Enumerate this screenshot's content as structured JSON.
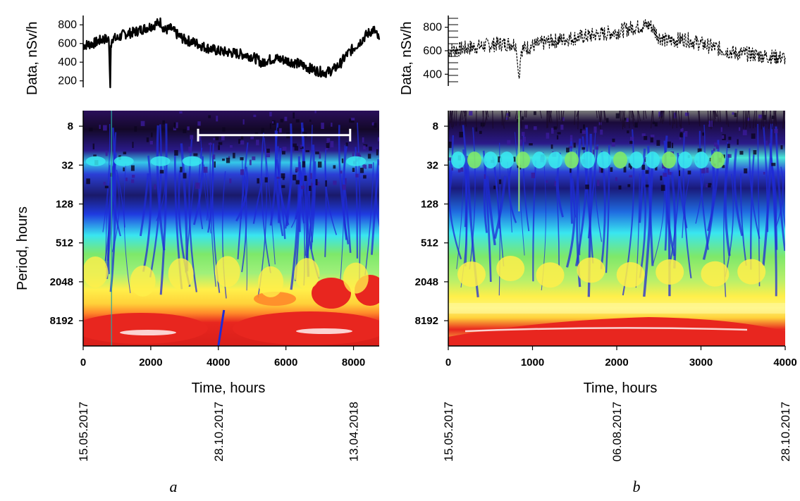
{
  "chart_data": [
    {
      "panel": "a",
      "type": "line",
      "ylabel": "Data, nSv/h",
      "y_ticks": [
        "800",
        "600",
        "400",
        "200"
      ],
      "y_tick_values": [
        800,
        600,
        400,
        200
      ],
      "ylim": [
        130,
        900
      ],
      "xlim": [
        0,
        8760
      ],
      "x": [
        0,
        300,
        600,
        760,
        800,
        820,
        840,
        880,
        1000,
        1200,
        1500,
        1800,
        2100,
        2300,
        2400,
        2600,
        2800,
        3000,
        3300,
        3600,
        4000,
        4400,
        4800,
        5000,
        5200,
        5300,
        5400,
        5700,
        6000,
        6400,
        6800,
        7000,
        7200,
        7400,
        7600,
        7800,
        8000,
        8200,
        8400,
        8600,
        8760
      ],
      "y": [
        580,
        600,
        650,
        640,
        130,
        560,
        640,
        660,
        650,
        700,
        720,
        760,
        800,
        830,
        740,
        760,
        690,
        640,
        610,
        560,
        520,
        500,
        480,
        460,
        420,
        380,
        420,
        440,
        420,
        380,
        320,
        300,
        290,
        320,
        380,
        480,
        550,
        620,
        700,
        750,
        640
      ]
    },
    {
      "panel": "b",
      "type": "line",
      "ylabel": "Data, nSv/h",
      "y_ticks": [
        "800",
        "600",
        "400"
      ],
      "y_tick_values": [
        800,
        600,
        400
      ],
      "ylim": [
        300,
        900
      ],
      "xlim": [
        0,
        4000
      ],
      "x": [
        0,
        200,
        400,
        600,
        800,
        840,
        860,
        900,
        1000,
        1200,
        1400,
        1600,
        1800,
        2000,
        2200,
        2400,
        2500,
        2600,
        2800,
        3000,
        3200,
        3400,
        3600,
        3800,
        4000
      ],
      "y": [
        600,
        620,
        640,
        660,
        660,
        350,
        600,
        620,
        640,
        680,
        700,
        720,
        740,
        760,
        800,
        820,
        720,
        680,
        700,
        660,
        620,
        580,
        570,
        550,
        540
      ]
    },
    {
      "panel": "a",
      "type": "heatmap",
      "ylabel": "Period, hours",
      "xlabel": "Time, hours",
      "x_ticks": [
        "0",
        "2000",
        "4000",
        "6000",
        "8000"
      ],
      "x_tick_values": [
        0,
        2000,
        4000,
        6000,
        8000
      ],
      "xlim": [
        0,
        8760
      ],
      "y_ticks": [
        "8",
        "32",
        "128",
        "512",
        "2048",
        "8192"
      ],
      "y_tick_values": [
        8,
        32,
        128,
        512,
        2048,
        8192
      ],
      "log2_period_range": [
        2.2,
        14.3
      ],
      "bracket": [
        3400,
        7900
      ],
      "bracket_period": 11,
      "dates": [
        "15.05.2017",
        "28.10.2017",
        "13.04.2018"
      ],
      "date_hours": [
        0,
        4000,
        8000
      ]
    },
    {
      "panel": "b",
      "type": "heatmap",
      "ylabel": "",
      "xlabel": "Time, hours",
      "x_ticks": [
        "0",
        "1000",
        "2000",
        "3000",
        "4000"
      ],
      "x_tick_values": [
        0,
        1000,
        2000,
        3000,
        4000
      ],
      "xlim": [
        0,
        4000
      ],
      "y_ticks": [
        "8",
        "32",
        "128",
        "512",
        "2048",
        "8192"
      ],
      "y_tick_values": [
        8,
        32,
        128,
        512,
        2048,
        8192
      ],
      "log2_period_range": [
        2.2,
        14.3
      ],
      "dates": [
        "15.05.2017",
        "06.08.2017",
        "28.10.2017"
      ],
      "date_hours": [
        0,
        2000,
        4000
      ]
    }
  ],
  "labels": {
    "panel_a": "a",
    "panel_b": "b",
    "period_ylabel": "Period, hours",
    "data_ylabel": "Data, nSv/h",
    "time_xlabel": "Time, hours"
  },
  "colors": {
    "dark": "#1a0a3a",
    "blue": "#1f2bd6",
    "cyan": "#39e6f0",
    "green": "#7ee86a",
    "yellow": "#ffef4a",
    "red": "#e8261f",
    "white": "#ffffff",
    "grey": "#8a8a8a"
  }
}
